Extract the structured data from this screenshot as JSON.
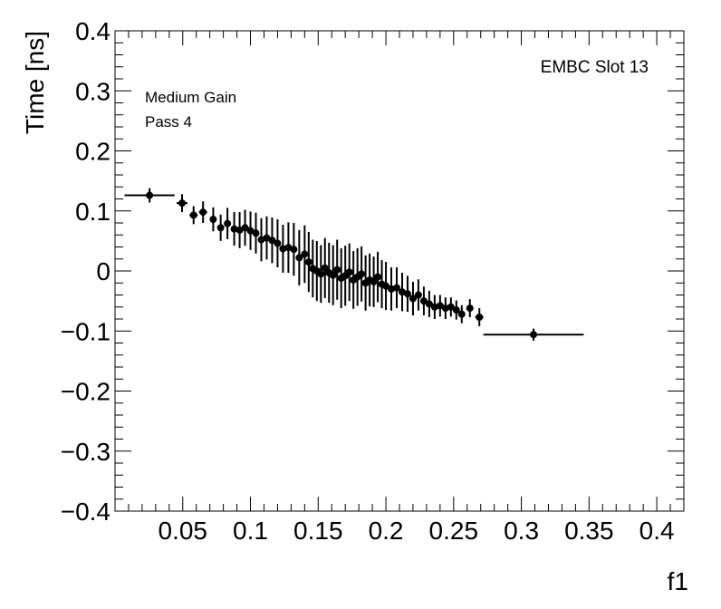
{
  "chart_data": {
    "type": "scatter",
    "title": "",
    "xlabel": "f1",
    "ylabel": "Time [ns]",
    "xlim": [
      0.0,
      0.42
    ],
    "ylim": [
      -0.4,
      0.4
    ],
    "x_ticks": [
      0.05,
      0.1,
      0.15,
      0.2,
      0.25,
      0.3,
      0.35,
      0.4
    ],
    "x_tick_labels": [
      "0.05",
      "0.1",
      "0.15",
      "0.2",
      "0.25",
      "0.3",
      "0.35",
      "0.4"
    ],
    "y_ticks": [
      -0.4,
      -0.3,
      -0.2,
      -0.1,
      0,
      0.1,
      0.2,
      0.3,
      0.4
    ],
    "y_tick_labels": [
      "−0.4",
      "−0.3",
      "−0.2",
      "−0.1",
      "0",
      "0.1",
      "0.2",
      "0.3",
      "0.4"
    ],
    "grid": false,
    "annotations": {
      "left_line1": "Medium Gain",
      "left_line2": "Pass 4",
      "right": "EMBC Slot 13"
    },
    "color": "#000000",
    "points": [
      {
        "x": 0.0255,
        "y": 0.126,
        "xerr": 0.0185,
        "yerr": 0.012
      },
      {
        "x": 0.0495,
        "y": 0.113,
        "xerr": 0.004,
        "yerr": 0.015
      },
      {
        "x": 0.058,
        "y": 0.093,
        "xerr": 0.003,
        "yerr": 0.015
      },
      {
        "x": 0.065,
        "y": 0.098,
        "xerr": 0.003,
        "yerr": 0.018
      },
      {
        "x": 0.0725,
        "y": 0.086,
        "xerr": 0.002,
        "yerr": 0.02
      },
      {
        "x": 0.078,
        "y": 0.072,
        "xerr": 0.002,
        "yerr": 0.022
      },
      {
        "x": 0.083,
        "y": 0.079,
        "xerr": 0.002,
        "yerr": 0.026
      },
      {
        "x": 0.088,
        "y": 0.07,
        "xerr": 0.0015,
        "yerr": 0.028
      },
      {
        "x": 0.092,
        "y": 0.068,
        "xerr": 0.0015,
        "yerr": 0.03
      },
      {
        "x": 0.096,
        "y": 0.072,
        "xerr": 0.0015,
        "yerr": 0.03
      },
      {
        "x": 0.1,
        "y": 0.067,
        "xerr": 0.0015,
        "yerr": 0.032
      },
      {
        "x": 0.104,
        "y": 0.063,
        "xerr": 0.0015,
        "yerr": 0.034
      },
      {
        "x": 0.108,
        "y": 0.052,
        "xerr": 0.0015,
        "yerr": 0.036
      },
      {
        "x": 0.112,
        "y": 0.055,
        "xerr": 0.0015,
        "yerr": 0.036
      },
      {
        "x": 0.116,
        "y": 0.051,
        "xerr": 0.0015,
        "yerr": 0.038
      },
      {
        "x": 0.12,
        "y": 0.046,
        "xerr": 0.0015,
        "yerr": 0.04
      },
      {
        "x": 0.124,
        "y": 0.037,
        "xerr": 0.0015,
        "yerr": 0.04
      },
      {
        "x": 0.128,
        "y": 0.039,
        "xerr": 0.0015,
        "yerr": 0.042
      },
      {
        "x": 0.132,
        "y": 0.036,
        "xerr": 0.0015,
        "yerr": 0.044
      },
      {
        "x": 0.136,
        "y": 0.022,
        "xerr": 0.0015,
        "yerr": 0.046
      },
      {
        "x": 0.14,
        "y": 0.028,
        "xerr": 0.0015,
        "yerr": 0.048
      },
      {
        "x": 0.143,
        "y": 0.015,
        "xerr": 0.0012,
        "yerr": 0.05
      },
      {
        "x": 0.146,
        "y": 0.004,
        "xerr": 0.0012,
        "yerr": 0.048
      },
      {
        "x": 0.149,
        "y": 0.0,
        "xerr": 0.0012,
        "yerr": 0.05
      },
      {
        "x": 0.152,
        "y": -0.005,
        "xerr": 0.0012,
        "yerr": 0.048
      },
      {
        "x": 0.155,
        "y": 0.005,
        "xerr": 0.0012,
        "yerr": 0.05
      },
      {
        "x": 0.158,
        "y": -0.003,
        "xerr": 0.0012,
        "yerr": 0.05
      },
      {
        "x": 0.161,
        "y": -0.007,
        "xerr": 0.0012,
        "yerr": 0.05
      },
      {
        "x": 0.164,
        "y": 0.002,
        "xerr": 0.0012,
        "yerr": 0.05
      },
      {
        "x": 0.167,
        "y": -0.012,
        "xerr": 0.0012,
        "yerr": 0.05
      },
      {
        "x": 0.17,
        "y": -0.008,
        "xerr": 0.0012,
        "yerr": 0.05
      },
      {
        "x": 0.173,
        "y": -0.002,
        "xerr": 0.0012,
        "yerr": 0.048
      },
      {
        "x": 0.176,
        "y": -0.015,
        "xerr": 0.0012,
        "yerr": 0.048
      },
      {
        "x": 0.179,
        "y": -0.01,
        "xerr": 0.0012,
        "yerr": 0.048
      },
      {
        "x": 0.182,
        "y": -0.005,
        "xerr": 0.0012,
        "yerr": 0.046
      },
      {
        "x": 0.185,
        "y": -0.02,
        "xerr": 0.0012,
        "yerr": 0.046
      },
      {
        "x": 0.188,
        "y": -0.015,
        "xerr": 0.0012,
        "yerr": 0.044
      },
      {
        "x": 0.191,
        "y": -0.018,
        "xerr": 0.0012,
        "yerr": 0.042
      },
      {
        "x": 0.194,
        "y": -0.01,
        "xerr": 0.0012,
        "yerr": 0.042
      },
      {
        "x": 0.197,
        "y": -0.022,
        "xerr": 0.0012,
        "yerr": 0.04
      },
      {
        "x": 0.2,
        "y": -0.025,
        "xerr": 0.0012,
        "yerr": 0.04
      },
      {
        "x": 0.204,
        "y": -0.03,
        "xerr": 0.0015,
        "yerr": 0.036
      },
      {
        "x": 0.208,
        "y": -0.028,
        "xerr": 0.0015,
        "yerr": 0.034
      },
      {
        "x": 0.212,
        "y": -0.035,
        "xerr": 0.0015,
        "yerr": 0.032
      },
      {
        "x": 0.216,
        "y": -0.038,
        "xerr": 0.0015,
        "yerr": 0.03
      },
      {
        "x": 0.22,
        "y": -0.046,
        "xerr": 0.0015,
        "yerr": 0.028
      },
      {
        "x": 0.224,
        "y": -0.04,
        "xerr": 0.0015,
        "yerr": 0.026
      },
      {
        "x": 0.228,
        "y": -0.05,
        "xerr": 0.0015,
        "yerr": 0.024
      },
      {
        "x": 0.232,
        "y": -0.055,
        "xerr": 0.0015,
        "yerr": 0.022
      },
      {
        "x": 0.236,
        "y": -0.06,
        "xerr": 0.0015,
        "yerr": 0.02
      },
      {
        "x": 0.24,
        "y": -0.058,
        "xerr": 0.0015,
        "yerr": 0.018
      },
      {
        "x": 0.244,
        "y": -0.062,
        "xerr": 0.0015,
        "yerr": 0.018
      },
      {
        "x": 0.248,
        "y": -0.06,
        "xerr": 0.0015,
        "yerr": 0.016
      },
      {
        "x": 0.252,
        "y": -0.065,
        "xerr": 0.0015,
        "yerr": 0.016
      },
      {
        "x": 0.256,
        "y": -0.072,
        "xerr": 0.0015,
        "yerr": 0.015
      },
      {
        "x": 0.262,
        "y": -0.062,
        "xerr": 0.002,
        "yerr": 0.015
      },
      {
        "x": 0.269,
        "y": -0.077,
        "xerr": 0.003,
        "yerr": 0.015
      },
      {
        "x": 0.309,
        "y": -0.106,
        "xerr": 0.037,
        "yerr": 0.01
      }
    ]
  }
}
